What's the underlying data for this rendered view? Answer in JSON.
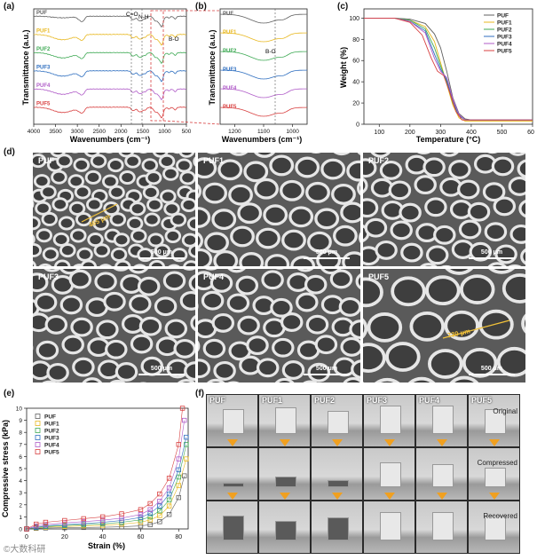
{
  "panel_labels": {
    "a": "(a)",
    "b": "(b)",
    "c": "(c)",
    "d": "(d)",
    "e": "(e)",
    "f": "(f)"
  },
  "samples": [
    "PUF",
    "PUF1",
    "PUF2",
    "PUF3",
    "PUF4",
    "PUF5"
  ],
  "colors": {
    "PUF": "#606060",
    "PUF1": "#e8b820",
    "PUF2": "#3faa55",
    "PUF3": "#2f6fc0",
    "PUF4": "#b05cc8",
    "PUF5": "#d84040"
  },
  "ftir": {
    "xlabel": "Wavenumbers (cm⁻¹)",
    "ylabel": "Transmittance (a.u.)",
    "x_ticks": [
      "4000",
      "3500",
      "3000",
      "2500",
      "2000",
      "1500",
      "1000",
      "500"
    ],
    "annotations": {
      "co": "C=O",
      "nh": "N-H",
      "bo": "B-O"
    }
  },
  "ftir_zoom": {
    "xlabel": "Wavenumbers (cm⁻¹)",
    "ylabel": "Transmittance (a.u.)",
    "x_ticks": [
      "1200",
      "1100",
      "1000"
    ],
    "annotation": "B-O"
  },
  "chart_data": [
    {
      "type": "line",
      "title": "",
      "xlabel": "Wavenumbers (cm⁻¹)",
      "ylabel": "Transmittance (a.u.)",
      "xlim": [
        4000,
        500
      ],
      "series_names": [
        "PUF",
        "PUF1",
        "PUF2",
        "PUF3",
        "PUF4",
        "PUF5"
      ]
    },
    {
      "type": "line",
      "title": "",
      "xlabel": "Wavenumbers (cm⁻¹)",
      "ylabel": "Transmittance (a.u.)",
      "xlim": [
        1250,
        950
      ],
      "series_names": [
        "PUF",
        "PUF1",
        "PUF2",
        "PUF3",
        "PUF4",
        "PUF5"
      ]
    },
    {
      "type": "line",
      "xlabel": "Temperature (°C)",
      "ylabel": "Weight (%)",
      "xlim": [
        50,
        600
      ],
      "ylim": [
        0,
        100
      ],
      "x_ticks": [
        "100",
        "200",
        "300",
        "400",
        "500",
        "600"
      ],
      "y_ticks": [
        "0",
        "20",
        "40",
        "60",
        "80",
        "100"
      ],
      "series": [
        {
          "name": "PUF",
          "x": [
            50,
            150,
            200,
            250,
            280,
            300,
            320,
            340,
            360,
            380,
            400,
            450,
            600
          ],
          "y": [
            100,
            100,
            99,
            95,
            85,
            72,
            50,
            25,
            10,
            5,
            4,
            4,
            4
          ]
        },
        {
          "name": "PUF1",
          "x": [
            50,
            150,
            200,
            250,
            280,
            300,
            320,
            340,
            360,
            380,
            600
          ],
          "y": [
            100,
            100,
            98,
            92,
            78,
            58,
            38,
            18,
            6,
            3,
            3
          ]
        },
        {
          "name": "PUF2",
          "x": [
            50,
            150,
            200,
            250,
            280,
            300,
            320,
            340,
            360,
            380,
            600
          ],
          "y": [
            100,
            100,
            98,
            90,
            72,
            55,
            40,
            20,
            8,
            4,
            4
          ]
        },
        {
          "name": "PUF3",
          "x": [
            50,
            150,
            200,
            250,
            280,
            300,
            320,
            340,
            360,
            380,
            600
          ],
          "y": [
            100,
            100,
            97,
            88,
            66,
            52,
            42,
            22,
            8,
            4,
            4
          ]
        },
        {
          "name": "PUF4",
          "x": [
            50,
            150,
            200,
            250,
            280,
            300,
            320,
            340,
            360,
            380,
            600
          ],
          "y": [
            100,
            100,
            97,
            86,
            62,
            50,
            44,
            24,
            9,
            4,
            4
          ]
        },
        {
          "name": "PUF5",
          "x": [
            50,
            150,
            200,
            240,
            270,
            290,
            310,
            330,
            350,
            370,
            600
          ],
          "y": [
            100,
            100,
            96,
            84,
            62,
            50,
            46,
            30,
            12,
            4,
            4
          ]
        }
      ]
    },
    {
      "type": "scatter",
      "xlabel": "Strain (%)",
      "ylabel": "Compressive stress (kPa)",
      "xlim": [
        0,
        85
      ],
      "ylim": [
        0,
        10
      ],
      "x_ticks": [
        "0",
        "20",
        "40",
        "60",
        "80"
      ],
      "y_ticks": [
        "0",
        "1",
        "2",
        "3",
        "4",
        "5",
        "6",
        "7",
        "8",
        "9",
        "10"
      ],
      "series": [
        {
          "name": "PUF",
          "x": [
            0,
            5,
            10,
            20,
            30,
            40,
            50,
            60,
            65,
            70,
            75,
            80,
            83
          ],
          "y": [
            0,
            0.05,
            0.08,
            0.1,
            0.12,
            0.14,
            0.18,
            0.25,
            0.35,
            0.6,
            1.2,
            2.6,
            4.4
          ]
        },
        {
          "name": "PUF1",
          "x": [
            0,
            5,
            10,
            20,
            30,
            40,
            50,
            60,
            65,
            70,
            75,
            80,
            84
          ],
          "y": [
            0,
            0.1,
            0.15,
            0.2,
            0.25,
            0.3,
            0.4,
            0.55,
            0.75,
            1.1,
            1.9,
            3.6,
            5.8
          ]
        },
        {
          "name": "PUF2",
          "x": [
            0,
            5,
            10,
            20,
            30,
            40,
            50,
            60,
            65,
            70,
            75,
            80,
            84
          ],
          "y": [
            0,
            0.12,
            0.2,
            0.28,
            0.35,
            0.42,
            0.55,
            0.75,
            1.0,
            1.5,
            2.4,
            4.3,
            7.0
          ]
        },
        {
          "name": "PUF3",
          "x": [
            0,
            5,
            10,
            20,
            30,
            40,
            50,
            60,
            65,
            70,
            75,
            80,
            84
          ],
          "y": [
            0,
            0.15,
            0.25,
            0.35,
            0.45,
            0.55,
            0.7,
            0.95,
            1.3,
            1.9,
            2.9,
            4.9,
            7.6
          ]
        },
        {
          "name": "PUF4",
          "x": [
            0,
            5,
            10,
            20,
            30,
            40,
            50,
            60,
            65,
            70,
            75,
            80,
            83
          ],
          "y": [
            0,
            0.25,
            0.35,
            0.5,
            0.6,
            0.72,
            0.9,
            1.2,
            1.6,
            2.3,
            3.4,
            5.8,
            9.0
          ]
        },
        {
          "name": "PUF5",
          "x": [
            0,
            5,
            10,
            20,
            30,
            40,
            50,
            60,
            65,
            70,
            75,
            80,
            82
          ],
          "y": [
            0,
            0.4,
            0.55,
            0.7,
            0.85,
            1.0,
            1.25,
            1.6,
            2.1,
            2.9,
            4.2,
            7.0,
            10.0
          ]
        }
      ]
    }
  ],
  "tga": {
    "xlabel": "Temperature (°C)",
    "ylabel": "Weight (%)"
  },
  "compress": {
    "xlabel": "Strain (%)",
    "ylabel": "Compressive stress (kPa)"
  },
  "sem": {
    "scale": "500 μm",
    "tiles": [
      {
        "name": "PUF",
        "dim": "465 μm"
      },
      {
        "name": "PUF1"
      },
      {
        "name": "PUF2"
      },
      {
        "name": "PUF3"
      },
      {
        "name": "PUF4"
      },
      {
        "name": "PUF5",
        "dim": "730 μm"
      }
    ]
  },
  "photos": {
    "rows": [
      "Original",
      "Compressed",
      "Recovered"
    ]
  },
  "watermark": "©大数科研"
}
